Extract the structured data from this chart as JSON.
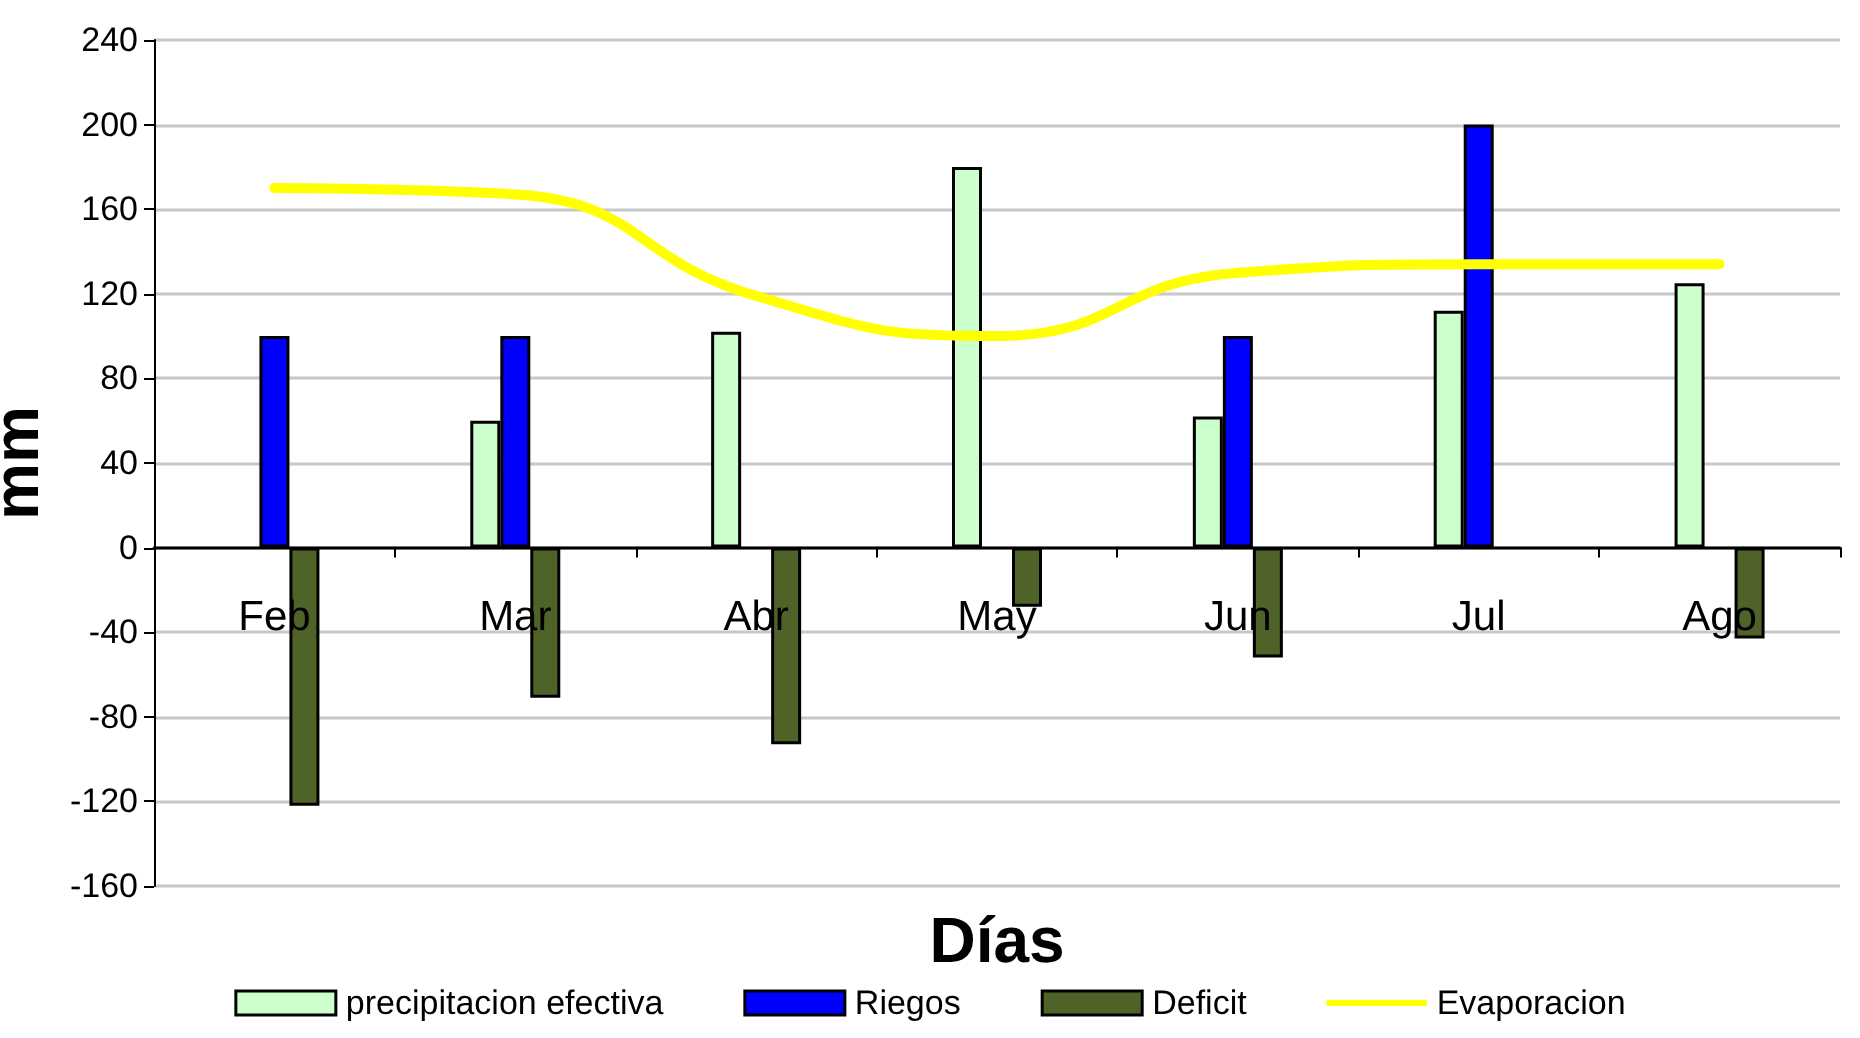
{
  "chart_data": {
    "type": "bar",
    "xlabel": "Días",
    "ylabel": "mm",
    "categories": [
      "Feb",
      "Mar",
      "Abr",
      "May",
      "Jun",
      "Jul",
      "Ago"
    ],
    "series": [
      {
        "name": "precipitacion efectiva",
        "color": "#ccffcc",
        "values": [
          null,
          60,
          102,
          180,
          62,
          112,
          125
        ]
      },
      {
        "name": "Riegos",
        "color": "#0000ff",
        "values": [
          100,
          100,
          null,
          null,
          100,
          200,
          null
        ]
      },
      {
        "name": "Deficit",
        "color": "#4f6228",
        "values": [
          -122,
          -71,
          -93,
          -28,
          -52,
          null,
          -43
        ]
      },
      {
        "name": "Evaporacion",
        "type": "line",
        "color": "#ffff00",
        "marker": "none",
        "values": [
          170,
          167,
          119,
          100,
          130,
          134,
          134
        ]
      }
    ],
    "ylim": [
      -160,
      240
    ],
    "yticks": [
      -160,
      -120,
      -80,
      -40,
      0,
      40,
      80,
      120,
      160,
      200,
      240
    ],
    "grid": "y",
    "legend": "bottom"
  }
}
